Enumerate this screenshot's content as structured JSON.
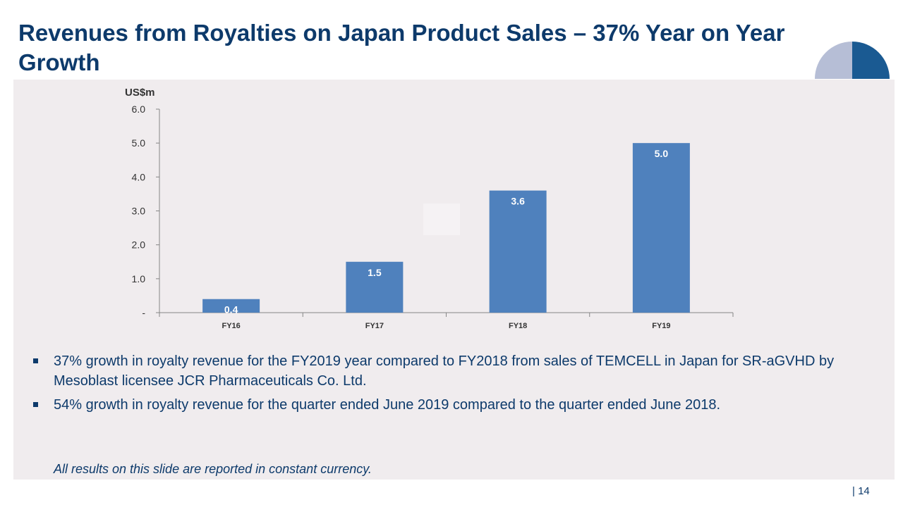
{
  "slide": {
    "title": "Revenues from Royalties on Japan Product Sales – 37% Year on Year Growth",
    "bullets": [
      "37% growth in royalty revenue for the FY2019 year compared to FY2018 from sales of TEMCELL in Japan for SR-aGVHD by Mesoblast licensee JCR Pharmaceuticals Co. Ltd.",
      "54% growth in royalty revenue for the quarter ended June 2019 compared to the quarter ended June 2018."
    ],
    "footnote": "All results on this slide are reported in constant currency.",
    "page_number": "| 14"
  },
  "colors": {
    "title": "#0d3a6b",
    "bar": "#4f81bd",
    "panel": "#f0ecee",
    "logo_light": "#b6bed6",
    "logo_mid": "#1a5a92",
    "logo_dark": "#0d3a6b"
  },
  "chart_data": {
    "type": "bar",
    "categories": [
      "FY16",
      "FY17",
      "FY18",
      "FY19"
    ],
    "values": [
      0.4,
      1.5,
      3.6,
      5.0
    ],
    "data_labels": [
      "0.4",
      "1.5",
      "3.6",
      "5.0"
    ],
    "title": "",
    "xlabel": "",
    "ylabel": "US$m",
    "ylim": [
      0,
      6
    ],
    "yticks": [
      0,
      1,
      2,
      3,
      4,
      5,
      6
    ],
    "ytick_labels": [
      "-",
      "1.0",
      "2.0",
      "3.0",
      "4.0",
      "5.0",
      "6.0"
    ],
    "grid": false,
    "legend": "none"
  }
}
